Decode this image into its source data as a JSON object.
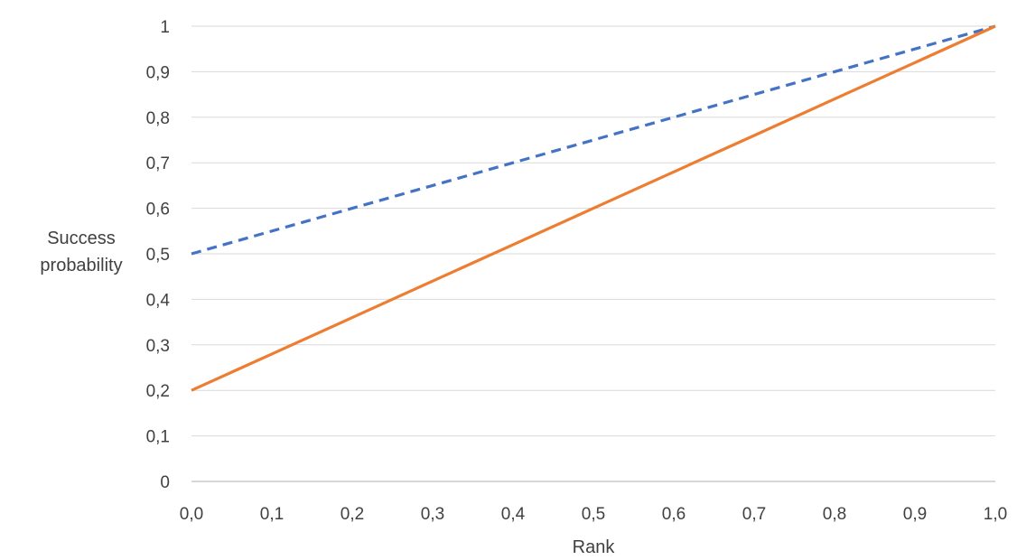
{
  "chart_data": {
    "type": "line",
    "xlabel": "Rank",
    "ylabel": "Success probability",
    "xlim": [
      0,
      1
    ],
    "ylim": [
      0,
      1
    ],
    "x_ticks": [
      "0,0",
      "0,1",
      "0,2",
      "0,3",
      "0,4",
      "0,5",
      "0,6",
      "0,7",
      "0,8",
      "0,9",
      "1,0"
    ],
    "y_ticks": [
      "0",
      "0,1",
      "0,2",
      "0,3",
      "0,4",
      "0,5",
      "0,6",
      "0,7",
      "0,8",
      "0,9",
      "1"
    ],
    "grid": "horizontal",
    "legend": "none",
    "series": [
      {
        "color": "#4472c4",
        "line_style": "dashed",
        "x": [
          0,
          0.1,
          0.2,
          0.3,
          0.4,
          0.5,
          0.6,
          0.7,
          0.8,
          0.9,
          1.0
        ],
        "y": [
          0.5,
          0.55,
          0.6,
          0.65,
          0.7,
          0.75,
          0.8,
          0.85,
          0.9,
          0.95,
          1.0
        ]
      },
      {
        "color": "#ed7d31",
        "line_style": "solid",
        "x": [
          0,
          0.1,
          0.2,
          0.3,
          0.4,
          0.5,
          0.6,
          0.7,
          0.8,
          0.9,
          1.0
        ],
        "y": [
          0.2,
          0.28,
          0.36,
          0.44,
          0.52,
          0.6,
          0.68,
          0.76,
          0.84,
          0.92,
          1.0
        ]
      }
    ]
  }
}
